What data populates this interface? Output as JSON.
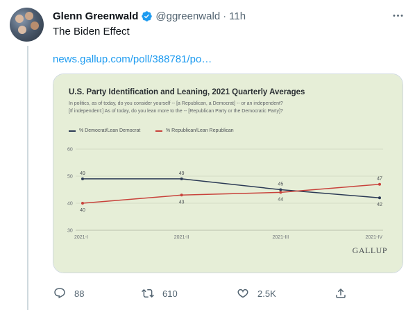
{
  "tweet": {
    "display_name": "Glenn Greenwald",
    "handle": "@ggreenwald",
    "separator": "·",
    "time": "11h",
    "text": "The Biden Effect",
    "link": "news.gallup.com/poll/388781/po…",
    "more_icon": "more-icon",
    "verified_icon": "verified-badge-icon"
  },
  "card": {
    "title": "U.S. Party Identification and Leaning, 2021 Quarterly Averages",
    "subtitle_1": "In politics, as of today, do you consider yourself -- [a Republican, a Democrat] -- or an independent?",
    "subtitle_2": "[If independent:] As of today, do you lean more to the -- [Republican Party or the Democratic Party]?",
    "brand": "GALLUP"
  },
  "chart_data": {
    "type": "line",
    "categories": [
      "2021-I",
      "2021-II",
      "2021-III",
      "2021-IV"
    ],
    "series": [
      {
        "name": "% Democrat/Lean Democrat",
        "values": [
          49,
          49,
          45,
          42
        ],
        "color": "#2b3a55"
      },
      {
        "name": "% Republican/Lean Republican",
        "values": [
          40,
          43,
          44,
          47
        ],
        "color": "#c8423b"
      }
    ],
    "title": "U.S. Party Identification and Leaning, 2021 Quarterly Averages",
    "ylim": [
      30,
      60
    ],
    "yticks": [
      30,
      40,
      50,
      60
    ],
    "grid": true,
    "legend": "top-left"
  },
  "actions": {
    "reply_count": "88",
    "retweet_count": "610",
    "like_count": "2.5K"
  },
  "colors": {
    "link": "#1d9bf0",
    "muted": "#536471",
    "chart_bg": "#e6eed7"
  }
}
